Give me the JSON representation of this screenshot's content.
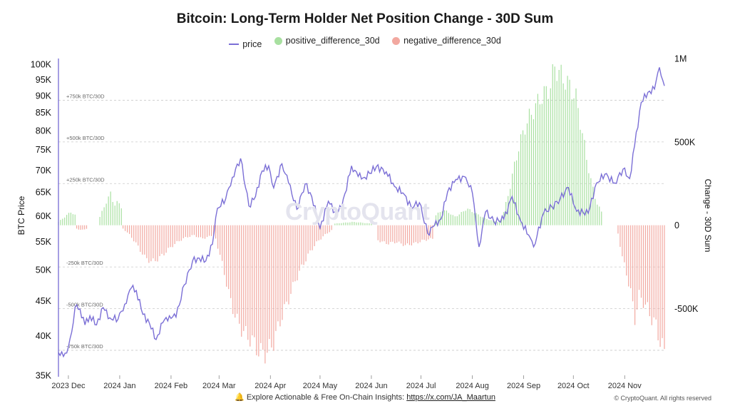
{
  "title": "Bitcoin: Long-Term Holder Net Position Change - 30D Sum",
  "legend": [
    {
      "name": "price",
      "color": "#7b6fd6",
      "shape": "line"
    },
    {
      "name": "positive_difference_30d",
      "color": "#a8e0a0",
      "shape": "dot"
    },
    {
      "name": "negative_difference_30d",
      "color": "#f2a8a0",
      "shape": "dot"
    }
  ],
  "watermark": "CryptoQuant",
  "footer": {
    "bell_icon": "bell-icon",
    "text": "Explore Actionable & Free On-Chain Insights: ",
    "link": "https://x.com/JA_Maartun"
  },
  "copyright": "© CryptoQuant. All rights reserved",
  "chart_data": {
    "type": "bar+line",
    "title": "Bitcoin: Long-Term Holder Net Position Change - 30D Sum",
    "x_start": "2023-11-25",
    "x_end": "2024-11-25",
    "x_ticks": [
      {
        "date": "2023-12-01",
        "label": "2023 Dec"
      },
      {
        "date": "2024-01-01",
        "label": "2024 Jan"
      },
      {
        "date": "2024-02-01",
        "label": "2024 Feb"
      },
      {
        "date": "2024-03-01",
        "label": "2024 Mar"
      },
      {
        "date": "2024-04-01",
        "label": "2024 Apr"
      },
      {
        "date": "2024-05-01",
        "label": "2024 May"
      },
      {
        "date": "2024-06-01",
        "label": "2024 Jun"
      },
      {
        "date": "2024-07-01",
        "label": "2024 Jul"
      },
      {
        "date": "2024-08-01",
        "label": "2024 Aug"
      },
      {
        "date": "2024-09-01",
        "label": "2024 Sep"
      },
      {
        "date": "2024-10-01",
        "label": "2024 Oct"
      },
      {
        "date": "2024-11-01",
        "label": "2024 Nov"
      }
    ],
    "left_axis": {
      "label": "BTC Price",
      "scale": "log",
      "range": [
        35000,
        102000
      ],
      "ticks": [
        {
          "value": 35000,
          "label": "35K"
        },
        {
          "value": 40000,
          "label": "40K"
        },
        {
          "value": 45000,
          "label": "45K"
        },
        {
          "value": 50000,
          "label": "50K"
        },
        {
          "value": 55000,
          "label": "55K"
        },
        {
          "value": 60000,
          "label": "60K"
        },
        {
          "value": 65000,
          "label": "65K"
        },
        {
          "value": 70000,
          "label": "70K"
        },
        {
          "value": 75000,
          "label": "75K"
        },
        {
          "value": 80000,
          "label": "80K"
        },
        {
          "value": 85000,
          "label": "85K"
        },
        {
          "value": 90000,
          "label": "90K"
        },
        {
          "value": 95000,
          "label": "95K"
        },
        {
          "value": 100000,
          "label": "100K"
        }
      ]
    },
    "right_axis": {
      "label": "Change - 30D Sum",
      "scale": "linear",
      "range": [
        -900000,
        1000000
      ],
      "ticks": [
        {
          "value": 1000000,
          "label": "1M"
        },
        {
          "value": 500000,
          "label": "500K"
        },
        {
          "value": 0,
          "label": "0"
        },
        {
          "value": -500000,
          "label": "-500K"
        }
      ]
    },
    "reference_lines": [
      {
        "value": 750000,
        "label": "+750k BTC/30D"
      },
      {
        "value": 500000,
        "label": "+500k BTC/30D"
      },
      {
        "value": 250000,
        "label": "+250k BTC/30D"
      },
      {
        "value": -250000,
        "label": "-250k BTC/30D"
      },
      {
        "value": -500000,
        "label": "-500k BTC/30D"
      },
      {
        "value": -750000,
        "label": "-750k BTC/30D"
      }
    ],
    "series": [
      {
        "name": "price",
        "kind": "line",
        "color": "#7b6fd6",
        "axis": "left",
        "points": [
          [
            "2023-11-25",
            37800
          ],
          [
            "2023-11-28",
            37300
          ],
          [
            "2023-12-01",
            38500
          ],
          [
            "2023-12-03",
            40500
          ],
          [
            "2023-12-05",
            44000
          ],
          [
            "2023-12-08",
            43800
          ],
          [
            "2023-12-11",
            41500
          ],
          [
            "2023-12-14",
            42800
          ],
          [
            "2023-12-18",
            41500
          ],
          [
            "2023-12-22",
            44000
          ],
          [
            "2023-12-26",
            42500
          ],
          [
            "2023-12-31",
            42300
          ],
          [
            "2024-01-04",
            44500
          ],
          [
            "2024-01-08",
            47000
          ],
          [
            "2024-01-11",
            46600
          ],
          [
            "2024-01-15",
            43000
          ],
          [
            "2024-01-19",
            41700
          ],
          [
            "2024-01-23",
            39500
          ],
          [
            "2024-01-27",
            41800
          ],
          [
            "2024-01-31",
            42800
          ],
          [
            "2024-02-04",
            42600
          ],
          [
            "2024-02-09",
            47500
          ],
          [
            "2024-02-14",
            51500
          ],
          [
            "2024-02-18",
            52000
          ],
          [
            "2024-02-22",
            51500
          ],
          [
            "2024-02-26",
            54500
          ],
          [
            "2024-02-29",
            61500
          ],
          [
            "2024-03-05",
            63500
          ],
          [
            "2024-03-09",
            68300
          ],
          [
            "2024-03-14",
            72800
          ],
          [
            "2024-03-19",
            62000
          ],
          [
            "2024-03-23",
            64000
          ],
          [
            "2024-03-27",
            69800
          ],
          [
            "2024-03-31",
            71000
          ],
          [
            "2024-04-03",
            65900
          ],
          [
            "2024-04-08",
            71500
          ],
          [
            "2024-04-12",
            67000
          ],
          [
            "2024-04-17",
            61300
          ],
          [
            "2024-04-22",
            66800
          ],
          [
            "2024-04-26",
            64000
          ],
          [
            "2024-05-01",
            57500
          ],
          [
            "2024-05-06",
            63000
          ],
          [
            "2024-05-10",
            60800
          ],
          [
            "2024-05-14",
            61500
          ],
          [
            "2024-05-20",
            71000
          ],
          [
            "2024-05-24",
            68500
          ],
          [
            "2024-05-28",
            68300
          ],
          [
            "2024-06-04",
            70800
          ],
          [
            "2024-06-10",
            69600
          ],
          [
            "2024-06-15",
            66200
          ],
          [
            "2024-06-20",
            64800
          ],
          [
            "2024-06-25",
            61800
          ],
          [
            "2024-06-30",
            62700
          ],
          [
            "2024-07-05",
            56500
          ],
          [
            "2024-07-09",
            58000
          ],
          [
            "2024-07-13",
            59300
          ],
          [
            "2024-07-17",
            65000
          ],
          [
            "2024-07-22",
            67800
          ],
          [
            "2024-07-28",
            68300
          ],
          [
            "2024-08-01",
            64800
          ],
          [
            "2024-08-05",
            54000
          ],
          [
            "2024-08-09",
            60800
          ],
          [
            "2024-08-14",
            58800
          ],
          [
            "2024-08-20",
            59300
          ],
          [
            "2024-08-25",
            64000
          ],
          [
            "2024-08-30",
            59000
          ],
          [
            "2024-09-04",
            56200
          ],
          [
            "2024-09-07",
            54000
          ],
          [
            "2024-09-13",
            60500
          ],
          [
            "2024-09-18",
            61800
          ],
          [
            "2024-09-23",
            63500
          ],
          [
            "2024-09-28",
            66000
          ],
          [
            "2024-10-03",
            60900
          ],
          [
            "2024-10-10",
            60500
          ],
          [
            "2024-10-15",
            67000
          ],
          [
            "2024-10-20",
            69000
          ],
          [
            "2024-10-26",
            67000
          ],
          [
            "2024-10-31",
            70200
          ],
          [
            "2024-11-04",
            68000
          ],
          [
            "2024-11-07",
            76000
          ],
          [
            "2024-11-11",
            88000
          ],
          [
            "2024-11-15",
            91000
          ],
          [
            "2024-11-19",
            92000
          ],
          [
            "2024-11-22",
            99000
          ],
          [
            "2024-11-25",
            93000
          ]
        ]
      },
      {
        "name": "positive_difference_30d",
        "kind": "bar",
        "color": "#a8e0a0",
        "axis": "right",
        "segments": [
          {
            "from": "2023-11-25",
            "to": "2023-12-05",
            "values": [
              20000,
              40000,
              60000,
              80000,
              60000
            ]
          },
          {
            "from": "2023-12-20",
            "to": "2024-01-02",
            "values": [
              50000,
              100000,
              150000,
              190000,
              120000,
              140000,
              110000
            ]
          },
          {
            "from": "2024-05-10",
            "to": "2024-06-01",
            "values": [
              10000,
              15000,
              20000,
              15000,
              10000
            ]
          },
          {
            "from": "2024-07-10",
            "to": "2024-08-20",
            "values": [
              60000,
              90000,
              80000,
              50000,
              70000,
              100000,
              80000,
              60000,
              40000,
              30000,
              20000,
              50000
            ]
          },
          {
            "from": "2024-08-20",
            "to": "2024-10-18",
            "values": [
              80000,
              200000,
              350000,
              480000,
              580000,
              650000,
              700000,
              760000,
              790000,
              830000,
              960000,
              900000,
              870000,
              820000,
              770000,
              600000,
              420000,
              260000,
              140000,
              80000
            ]
          }
        ]
      },
      {
        "name": "negative_difference_30d",
        "kind": "bar",
        "color": "#f2a8a0",
        "axis": "right",
        "segments": [
          {
            "from": "2023-12-06",
            "to": "2023-12-12",
            "values": [
              -20000,
              -30000,
              -20000
            ]
          },
          {
            "from": "2024-01-03",
            "to": "2024-02-28",
            "values": [
              -20000,
              -60000,
              -120000,
              -190000,
              -220000,
              -200000,
              -160000,
              -120000,
              -90000,
              -70000,
              -60000,
              -80000,
              -70000,
              -50000
            ]
          },
          {
            "from": "2024-02-28",
            "to": "2024-05-08",
            "values": [
              -80000,
              -250000,
              -450000,
              -580000,
              -650000,
              -690000,
              -760000,
              -770000,
              -700000,
              -560000,
              -450000,
              -330000,
              -240000,
              -160000,
              -100000,
              -60000,
              -30000
            ]
          },
          {
            "from": "2024-06-05",
            "to": "2024-07-08",
            "values": [
              -90000,
              -110000,
              -100000,
              -120000,
              -110000,
              -90000,
              -80000
            ]
          },
          {
            "from": "2024-10-28",
            "to": "2024-11-25",
            "values": [
              -50000,
              -190000,
              -290000,
              -400000,
              -560000,
              -420000,
              -460000,
              -500000,
              -560000,
              -600000,
              -700000,
              -760000
            ]
          }
        ]
      }
    ]
  }
}
